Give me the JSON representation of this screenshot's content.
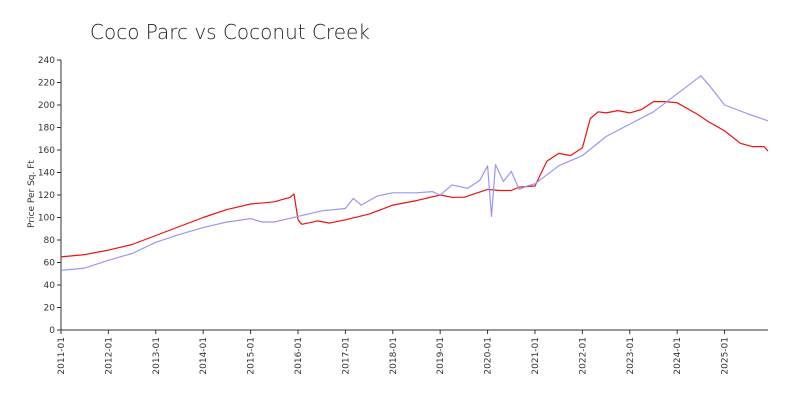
{
  "chart_data": {
    "type": "line",
    "title": "Coco Parc vs Coconut Creek",
    "xlabel": "",
    "ylabel": "Price Per Sq. Ft",
    "ylim": [
      0,
      240
    ],
    "xlim": [
      "2011-01",
      "2025-12"
    ],
    "grid": false,
    "y_ticks": [
      0,
      20,
      40,
      60,
      80,
      100,
      120,
      140,
      160,
      180,
      200,
      220,
      240
    ],
    "x_ticks": [
      "2011-01",
      "2012-01",
      "2013-01",
      "2014-01",
      "2015-01",
      "2016-01",
      "2017-01",
      "2018-01",
      "2019-01",
      "2020-01",
      "2021-01",
      "2022-01",
      "2023-01",
      "2024-01",
      "2025-01"
    ],
    "series": [
      {
        "color": "#ee1111",
        "points": [
          [
            "2011-01",
            65
          ],
          [
            "2011-07",
            67
          ],
          [
            "2012-01",
            71
          ],
          [
            "2012-07",
            76
          ],
          [
            "2013-01",
            84
          ],
          [
            "2013-07",
            92
          ],
          [
            "2014-01",
            100
          ],
          [
            "2014-07",
            107
          ],
          [
            "2015-01",
            112
          ],
          [
            "2015-07",
            114
          ],
          [
            "2015-11",
            118
          ],
          [
            "2015-12",
            121
          ],
          [
            "2016-01",
            98
          ],
          [
            "2016-02",
            94
          ],
          [
            "2016-06",
            97
          ],
          [
            "2016-09",
            95
          ],
          [
            "2017-01",
            98
          ],
          [
            "2017-07",
            103
          ],
          [
            "2018-01",
            111
          ],
          [
            "2018-07",
            115
          ],
          [
            "2019-01",
            120
          ],
          [
            "2019-04",
            118
          ],
          [
            "2019-07",
            118
          ],
          [
            "2020-01",
            125
          ],
          [
            "2020-04",
            124
          ],
          [
            "2020-07",
            124
          ],
          [
            "2020-09",
            127
          ],
          [
            "2021-01",
            128
          ],
          [
            "2021-04",
            150
          ],
          [
            "2021-07",
            157
          ],
          [
            "2021-10",
            155
          ],
          [
            "2022-01",
            162
          ],
          [
            "2022-03",
            188
          ],
          [
            "2022-05",
            194
          ],
          [
            "2022-07",
            193
          ],
          [
            "2022-10",
            195
          ],
          [
            "2023-01",
            193
          ],
          [
            "2023-04",
            196
          ],
          [
            "2023-07",
            203
          ],
          [
            "2023-10",
            203
          ],
          [
            "2024-01",
            202
          ],
          [
            "2024-04",
            196
          ],
          [
            "2024-06",
            192
          ],
          [
            "2024-09",
            185
          ],
          [
            "2025-01",
            177
          ],
          [
            "2025-05",
            166
          ],
          [
            "2025-08",
            163
          ],
          [
            "2025-11",
            163
          ],
          [
            "2025-12",
            159
          ]
        ]
      },
      {
        "color": "#9898f2",
        "points": [
          [
            "2011-01",
            53
          ],
          [
            "2011-07",
            55
          ],
          [
            "2012-01",
            62
          ],
          [
            "2012-07",
            68
          ],
          [
            "2013-01",
            78
          ],
          [
            "2013-07",
            85
          ],
          [
            "2014-01",
            91
          ],
          [
            "2014-07",
            96
          ],
          [
            "2015-01",
            99
          ],
          [
            "2015-04",
            96
          ],
          [
            "2015-07",
            96
          ],
          [
            "2016-01",
            101
          ],
          [
            "2016-07",
            106
          ],
          [
            "2017-01",
            108
          ],
          [
            "2017-03",
            117
          ],
          [
            "2017-05",
            111
          ],
          [
            "2017-09",
            119
          ],
          [
            "2018-01",
            122
          ],
          [
            "2018-07",
            122
          ],
          [
            "2018-11",
            123
          ],
          [
            "2019-01",
            120
          ],
          [
            "2019-04",
            129
          ],
          [
            "2019-08",
            126
          ],
          [
            "2019-11",
            133
          ],
          [
            "2020-01",
            146
          ],
          [
            "2020-02",
            101
          ],
          [
            "2020-03",
            147
          ],
          [
            "2020-05",
            132
          ],
          [
            "2020-07",
            141
          ],
          [
            "2020-09",
            125
          ],
          [
            "2020-11",
            128
          ],
          [
            "2021-01",
            130
          ],
          [
            "2021-07",
            146
          ],
          [
            "2022-01",
            155
          ],
          [
            "2022-07",
            172
          ],
          [
            "2023-01",
            183
          ],
          [
            "2023-07",
            194
          ],
          [
            "2024-01",
            210
          ],
          [
            "2024-04",
            218
          ],
          [
            "2024-07",
            226
          ],
          [
            "2024-09",
            218
          ],
          [
            "2025-01",
            200
          ],
          [
            "2025-07",
            192
          ],
          [
            "2025-12",
            186
          ]
        ]
      }
    ]
  }
}
